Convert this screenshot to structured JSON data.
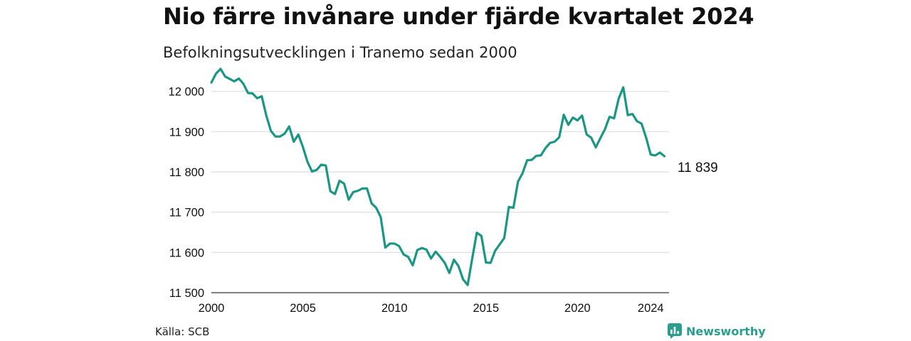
{
  "header": {
    "title": "Nio färre invånare under fjärde kvartalet 2024",
    "subtitle": "Befolkningsutvecklingen i Tranemo sedan 2000"
  },
  "footer": {
    "source": "Källa: SCB",
    "brand": "Newsworthy",
    "brand_icon": "newsworthy-logo-icon",
    "brand_color": "#2a9d8f"
  },
  "chart_data": {
    "type": "line",
    "title": "Nio färre invånare under fjärde kvartalet 2024",
    "subtitle": "Befolkningsutvecklingen i Tranemo sedan 2000",
    "xlabel": "",
    "ylabel": "",
    "ylim": [
      11500,
      12040
    ],
    "xlim": [
      2000,
      2025
    ],
    "grid": true,
    "line_color": "#1b9683",
    "y_ticks": [
      {
        "value": 11500,
        "label": "11 500"
      },
      {
        "value": 11600,
        "label": "11 600"
      },
      {
        "value": 11700,
        "label": "11 700"
      },
      {
        "value": 11800,
        "label": "11 800"
      },
      {
        "value": 11900,
        "label": "11 900"
      },
      {
        "value": 12000,
        "label": "12 000"
      }
    ],
    "x_ticks": [
      {
        "value": 2000,
        "label": "2000"
      },
      {
        "value": 2005,
        "label": "2005"
      },
      {
        "value": 2010,
        "label": "2010"
      },
      {
        "value": 2015,
        "label": "2015"
      },
      {
        "value": 2020,
        "label": "2020"
      },
      {
        "value": 2024,
        "label": "2024"
      }
    ],
    "end_label": "11 839",
    "series": [
      {
        "start_year": 2000,
        "periods_per_year": 4,
        "values": [
          12022,
          12044,
          12056,
          12037,
          12031,
          12025,
          12032,
          12019,
          11996,
          11995,
          11983,
          11988,
          11940,
          11902,
          11888,
          11888,
          11895,
          11913,
          11875,
          11893,
          11862,
          11825,
          11801,
          11805,
          11818,
          11816,
          11752,
          11745,
          11778,
          11771,
          11731,
          11750,
          11753,
          11759,
          11759,
          11722,
          11711,
          11688,
          11612,
          11622,
          11622,
          11616,
          11595,
          11589,
          11568,
          11606,
          11611,
          11607,
          11585,
          11602,
          11589,
          11574,
          11549,
          11582,
          11566,
          11533,
          11519,
          11585,
          11649,
          11641,
          11575,
          11574,
          11604,
          11620,
          11636,
          11713,
          11711,
          11776,
          11797,
          11829,
          11830,
          11840,
          11841,
          11859,
          11872,
          11875,
          11886,
          11942,
          11917,
          11935,
          11928,
          11940,
          11893,
          11885,
          11861,
          11884,
          11906,
          11937,
          11933,
          11982,
          12010,
          11941,
          11944,
          11926,
          11920,
          11885,
          11843,
          11841,
          11848,
          11839
        ]
      }
    ]
  }
}
